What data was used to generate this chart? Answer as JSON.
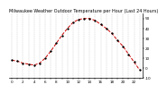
{
  "title": "Milwaukee Weather Outdoor Temperature per Hour (Last 24 Hours)",
  "hours": [
    0,
    1,
    2,
    3,
    4,
    5,
    6,
    7,
    8,
    9,
    10,
    11,
    12,
    13,
    14,
    15,
    16,
    17,
    18,
    19,
    20,
    21,
    22,
    23
  ],
  "temps": [
    8,
    7,
    5,
    4,
    3,
    5,
    10,
    17,
    25,
    33,
    40,
    46,
    49,
    50,
    50,
    48,
    44,
    40,
    35,
    28,
    22,
    14,
    6,
    -2
  ],
  "line_color": "#cc0000",
  "marker_color": "#000000",
  "bg_color": "#ffffff",
  "grid_color": "#999999",
  "title_color": "#000000",
  "ylim": [
    -10,
    55
  ],
  "yticks": [
    -10,
    0,
    10,
    20,
    30,
    40,
    50
  ],
  "title_fontsize": 3.5,
  "tick_fontsize": 3.0,
  "linewidth": 0.7,
  "markersize": 1.2
}
